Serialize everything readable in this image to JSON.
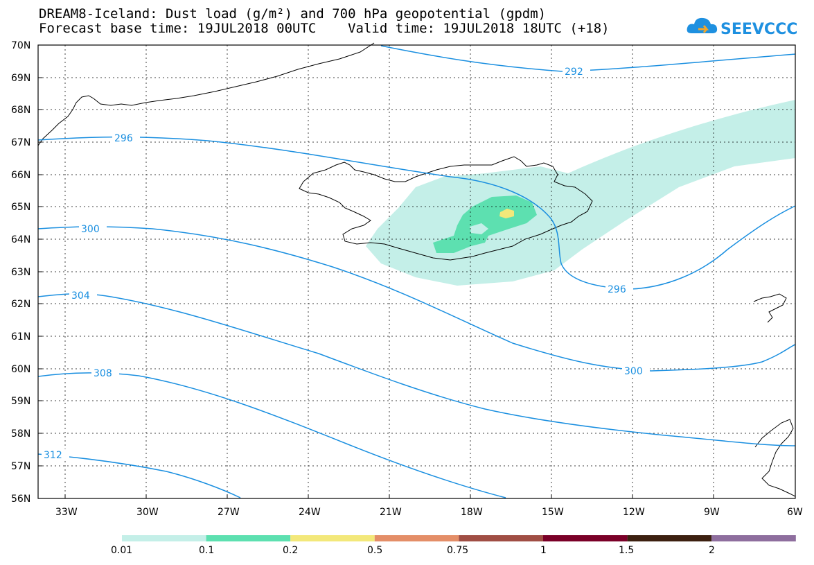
{
  "header": {
    "title_line1": "DREAM8-Iceland: Dust load (g/m²) and 700 hPa geopotential (gpdm)",
    "title_line2": "Forecast base time: 19JUL2018 00UTC    Valid time: 19JUL2018 18UTC (+18)"
  },
  "logo": {
    "text": "SEEVCCC",
    "icon": "cloud-icon",
    "color": "#1e90e0"
  },
  "map": {
    "lat_labels": [
      "70N",
      "69N",
      "68N",
      "67N",
      "66N",
      "65N",
      "64N",
      "63N",
      "62N",
      "61N",
      "60N",
      "59N",
      "58N",
      "57N",
      "56N"
    ],
    "lon_labels": [
      "33W",
      "30W",
      "27W",
      "24W",
      "21W",
      "18W",
      "15W",
      "12W",
      "9W",
      "6W"
    ],
    "contour_color": "#1a8fe0",
    "contours": [
      {
        "label": "292"
      },
      {
        "label": "296"
      },
      {
        "label": "296"
      },
      {
        "label": "300"
      },
      {
        "label": "300"
      },
      {
        "label": "304"
      },
      {
        "label": "308"
      },
      {
        "label": "312"
      }
    ]
  },
  "legend": {
    "labels": [
      "0.01",
      "0.1",
      "0.2",
      "0.5",
      "0.75",
      "1",
      "1.5",
      "2"
    ],
    "colors": [
      "#c4efe8",
      "#5de0b0",
      "#f3e87a",
      "#e48e68",
      "#a04e44",
      "#7a0028",
      "#3c2010",
      "#8e6e9e"
    ]
  }
}
